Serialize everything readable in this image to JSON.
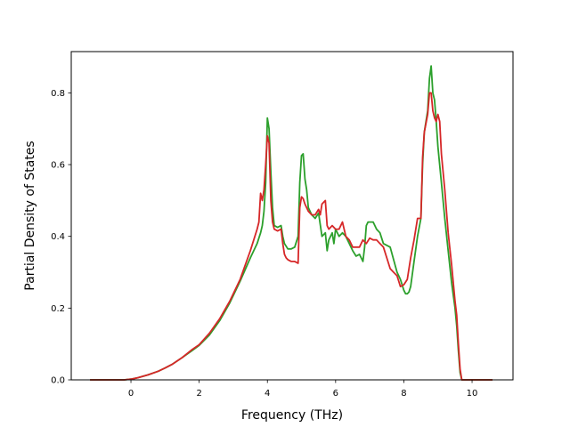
{
  "chart_data": {
    "type": "line",
    "title": "",
    "xlabel": "Frequency (THz)",
    "ylabel": "Partial Density of States",
    "xlim": [
      -1.75,
      11.2
    ],
    "ylim": [
      0.0,
      0.915
    ],
    "xticks": [
      0,
      2,
      4,
      6,
      8,
      10
    ],
    "xtick_labels": [
      "0",
      "2",
      "4",
      "6",
      "8",
      "10"
    ],
    "yticks": [
      0.0,
      0.2,
      0.4,
      0.6,
      0.8
    ],
    "ytick_labels": [
      "0.0",
      "0.2",
      "0.4",
      "0.6",
      "0.8"
    ],
    "grid": false,
    "legend": "none",
    "series": [
      {
        "color": "#2ca02c",
        "x": [
          -1.2,
          -0.5,
          -0.2,
          0.0,
          0.2,
          0.5,
          0.8,
          1.0,
          1.2,
          1.5,
          1.8,
          2.0,
          2.3,
          2.6,
          2.9,
          3.2,
          3.5,
          3.7,
          3.8,
          3.85,
          3.9,
          3.95,
          4.0,
          4.05,
          4.1,
          4.15,
          4.2,
          4.3,
          4.4,
          4.45,
          4.5,
          4.6,
          4.7,
          4.8,
          4.9,
          4.95,
          5.0,
          5.05,
          5.1,
          5.15,
          5.2,
          5.3,
          5.4,
          5.5,
          5.6,
          5.7,
          5.75,
          5.8,
          5.9,
          5.95,
          6.0,
          6.1,
          6.2,
          6.3,
          6.4,
          6.5,
          6.6,
          6.7,
          6.8,
          6.85,
          6.9,
          6.95,
          7.0,
          7.1,
          7.2,
          7.3,
          7.4,
          7.6,
          7.8,
          7.9,
          8.0,
          8.05,
          8.1,
          8.15,
          8.2,
          8.3,
          8.4,
          8.5,
          8.55,
          8.6,
          8.7,
          8.75,
          8.8,
          8.85,
          8.9,
          8.95,
          9.0,
          9.1,
          9.2,
          9.3,
          9.4,
          9.5,
          9.55,
          9.6,
          9.65,
          9.7,
          10.0,
          10.6
        ],
        "y": [
          0.0,
          0.0,
          0.0,
          0.002,
          0.006,
          0.014,
          0.024,
          0.033,
          0.043,
          0.062,
          0.082,
          0.096,
          0.125,
          0.165,
          0.215,
          0.275,
          0.34,
          0.38,
          0.41,
          0.43,
          0.47,
          0.55,
          0.73,
          0.7,
          0.58,
          0.48,
          0.43,
          0.425,
          0.43,
          0.4,
          0.38,
          0.365,
          0.365,
          0.37,
          0.4,
          0.55,
          0.625,
          0.63,
          0.56,
          0.53,
          0.48,
          0.46,
          0.45,
          0.465,
          0.4,
          0.41,
          0.36,
          0.39,
          0.41,
          0.38,
          0.42,
          0.4,
          0.41,
          0.4,
          0.38,
          0.36,
          0.345,
          0.35,
          0.33,
          0.37,
          0.43,
          0.44,
          0.44,
          0.44,
          0.42,
          0.41,
          0.38,
          0.37,
          0.3,
          0.28,
          0.25,
          0.24,
          0.24,
          0.245,
          0.26,
          0.33,
          0.4,
          0.45,
          0.6,
          0.69,
          0.75,
          0.84,
          0.875,
          0.8,
          0.78,
          0.72,
          0.65,
          0.55,
          0.45,
          0.36,
          0.27,
          0.2,
          0.15,
          0.08,
          0.02,
          0.0,
          0.0,
          0.0
        ]
      },
      {
        "color": "#d62728",
        "x": [
          -1.2,
          -0.5,
          -0.2,
          0.0,
          0.2,
          0.5,
          0.8,
          1.0,
          1.2,
          1.5,
          1.8,
          2.0,
          2.3,
          2.6,
          2.9,
          3.2,
          3.5,
          3.7,
          3.75,
          3.8,
          3.85,
          3.9,
          3.95,
          4.0,
          4.05,
          4.1,
          4.15,
          4.2,
          4.3,
          4.4,
          4.45,
          4.5,
          4.55,
          4.6,
          4.7,
          4.8,
          4.9,
          4.95,
          5.0,
          5.05,
          5.1,
          5.2,
          5.3,
          5.4,
          5.5,
          5.55,
          5.6,
          5.7,
          5.75,
          5.8,
          5.9,
          6.0,
          6.1,
          6.2,
          6.3,
          6.4,
          6.5,
          6.6,
          6.7,
          6.8,
          6.9,
          7.0,
          7.1,
          7.2,
          7.3,
          7.4,
          7.5,
          7.6,
          7.7,
          7.8,
          7.9,
          8.0,
          8.1,
          8.2,
          8.3,
          8.4,
          8.5,
          8.55,
          8.6,
          8.7,
          8.75,
          8.8,
          8.85,
          8.9,
          8.95,
          9.0,
          9.05,
          9.1,
          9.2,
          9.3,
          9.4,
          9.5,
          9.55,
          9.6,
          9.65,
          9.7,
          10.0,
          10.6
        ],
        "y": [
          0.0,
          0.0,
          0.0,
          0.002,
          0.006,
          0.014,
          0.024,
          0.033,
          0.043,
          0.062,
          0.085,
          0.098,
          0.13,
          0.17,
          0.22,
          0.28,
          0.36,
          0.42,
          0.44,
          0.52,
          0.5,
          0.53,
          0.6,
          0.68,
          0.66,
          0.5,
          0.44,
          0.42,
          0.415,
          0.42,
          0.38,
          0.35,
          0.34,
          0.335,
          0.33,
          0.33,
          0.325,
          0.48,
          0.51,
          0.505,
          0.49,
          0.47,
          0.46,
          0.46,
          0.475,
          0.46,
          0.49,
          0.5,
          0.43,
          0.42,
          0.43,
          0.42,
          0.42,
          0.44,
          0.4,
          0.39,
          0.37,
          0.37,
          0.37,
          0.39,
          0.38,
          0.395,
          0.39,
          0.39,
          0.38,
          0.37,
          0.34,
          0.31,
          0.3,
          0.29,
          0.26,
          0.265,
          0.28,
          0.34,
          0.39,
          0.45,
          0.45,
          0.62,
          0.69,
          0.74,
          0.8,
          0.8,
          0.75,
          0.73,
          0.72,
          0.74,
          0.72,
          0.63,
          0.53,
          0.41,
          0.32,
          0.22,
          0.18,
          0.1,
          0.03,
          0.0,
          0.0,
          0.0
        ]
      }
    ]
  }
}
